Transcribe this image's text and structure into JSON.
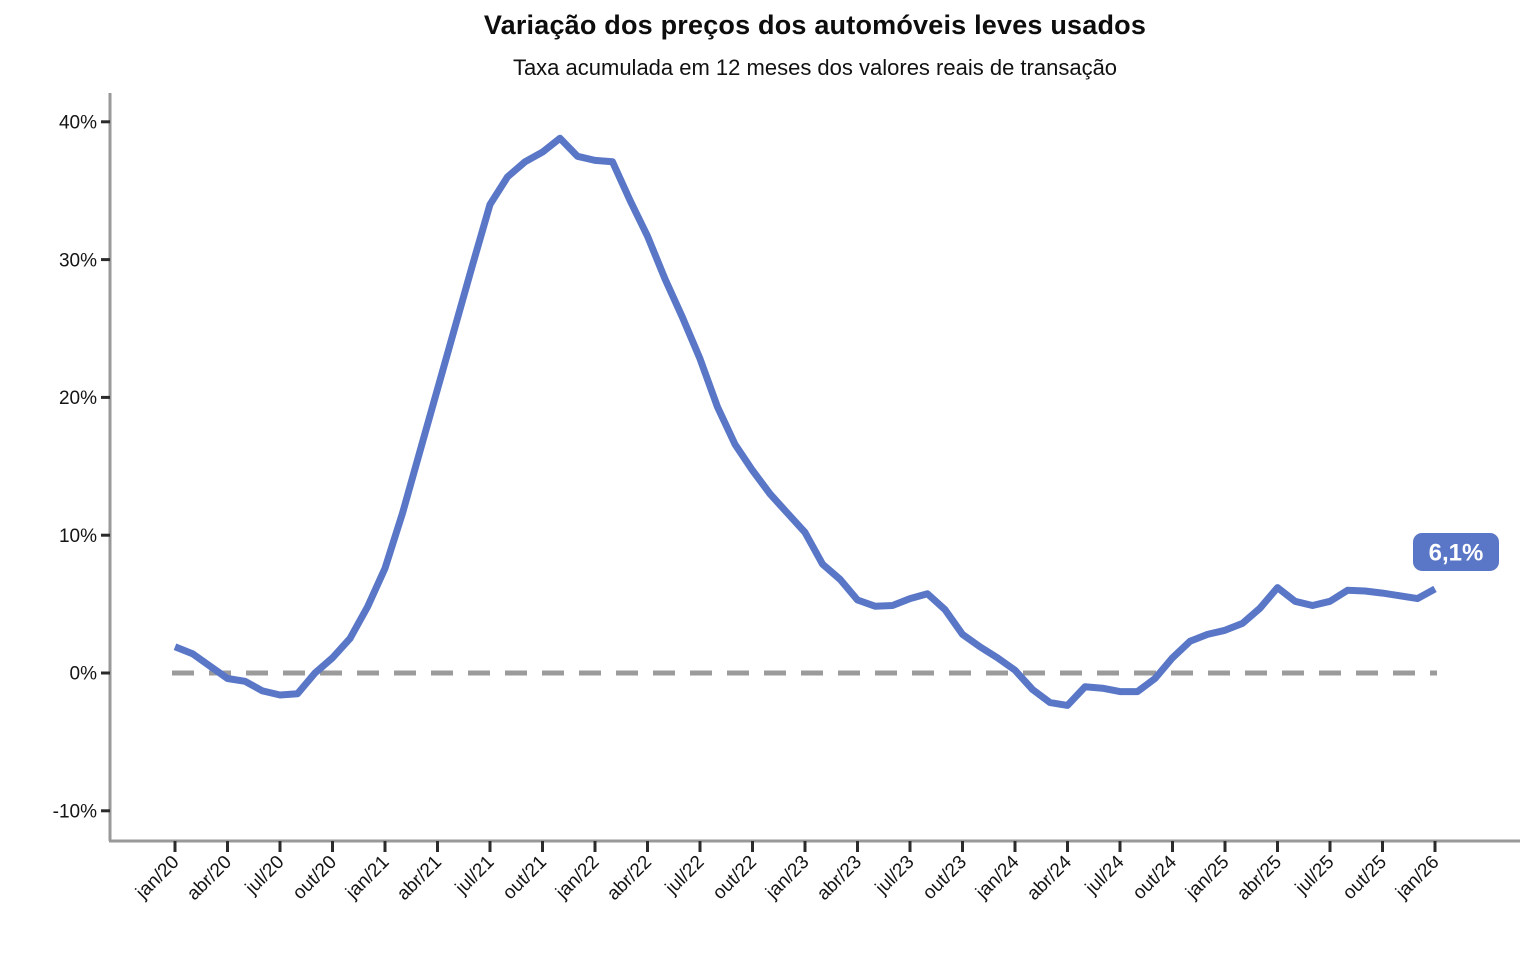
{
  "chart_data": {
    "type": "line",
    "title": "Variação dos preços dos automóveis leves usados",
    "subtitle": "Taxa acumulada em 12 meses dos valores reais de transação",
    "x_unit": "month",
    "x_start": "jan/20",
    "x_step_months": 1,
    "x_tick_every_months": 3,
    "x_tick_labels": [
      "jan/20",
      "abr/20",
      "jul/20",
      "out/20",
      "jan/21",
      "abr/21",
      "jul/21",
      "out/21",
      "jan/22",
      "abr/22",
      "jul/22",
      "out/22",
      "jan/23",
      "abr/23",
      "jul/23",
      "out/23",
      "jan/24",
      "abr/24",
      "jul/24",
      "out/24",
      "jan/25",
      "abr/25",
      "jul/25",
      "out/25",
      "jan/26"
    ],
    "y_axis": {
      "ticks": [
        40,
        30,
        20,
        10,
        0,
        -10
      ],
      "tick_labels": [
        "40%",
        "30%",
        "20%",
        "10%",
        "0%",
        "-10%"
      ],
      "range": [
        -12.2,
        42.1
      ],
      "grid": false
    },
    "zero_line": {
      "value": 0,
      "style": "dashed"
    },
    "series": [
      {
        "name": "Taxa acumulada em 12 meses",
        "values": [
          1.9,
          1.4,
          0.5,
          -0.4,
          -0.6,
          -1.3,
          -1.6,
          -1.5,
          0.0,
          1.1,
          2.5,
          4.8,
          7.6,
          11.6,
          16.1,
          20.6,
          25.1,
          29.6,
          34.0,
          36.0,
          37.1,
          37.8,
          38.8,
          37.5,
          37.2,
          37.1,
          34.3,
          31.7,
          28.6,
          25.8,
          22.8,
          19.3,
          16.6,
          14.7,
          13.0,
          11.6,
          10.2,
          7.9,
          6.8,
          5.3,
          4.85,
          4.9,
          5.4,
          5.75,
          4.6,
          2.8,
          1.9,
          1.1,
          0.2,
          -1.2,
          -2.15,
          -2.35,
          -1.0,
          -1.1,
          -1.35,
          -1.35,
          -0.4,
          1.1,
          2.3,
          2.8,
          3.1,
          3.6,
          4.7,
          6.2,
          5.2,
          4.9,
          5.2,
          6.0,
          5.95,
          5.8,
          5.6,
          5.4,
          6.1
        ]
      }
    ],
    "end_label": {
      "text": "6,1%",
      "value": 6.1
    },
    "legend": "none",
    "colors": {
      "line": "#5A77C7",
      "zero_line": "#9B9B9B",
      "axis": "#999999",
      "tick": "#2B2B2B",
      "text": "#141414",
      "label_bg": "#5A77C7",
      "label_fg": "#FFFFFF"
    }
  }
}
